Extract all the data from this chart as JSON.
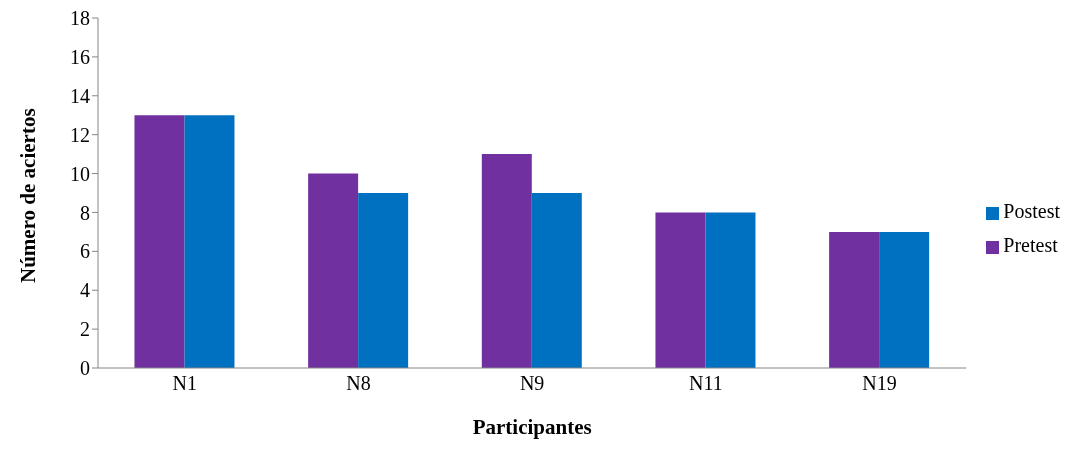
{
  "chart_data": {
    "type": "bar",
    "xlabel": "Participantes",
    "ylabel": "Número de  aciertos",
    "categories": [
      "N1",
      "N8",
      "N9",
      "N11",
      "N19"
    ],
    "series": [
      {
        "name": "Pretest",
        "color": "#7030a0",
        "values": [
          13,
          10,
          11,
          8,
          7
        ]
      },
      {
        "name": "Postest",
        "color": "#0070c0",
        "values": [
          13,
          9,
          9,
          8,
          7
        ]
      }
    ],
    "ylim": [
      0,
      18
    ],
    "yticks": [
      0,
      2,
      4,
      6,
      8,
      10,
      12,
      14,
      16,
      18
    ],
    "grid": false,
    "legend": "right"
  }
}
